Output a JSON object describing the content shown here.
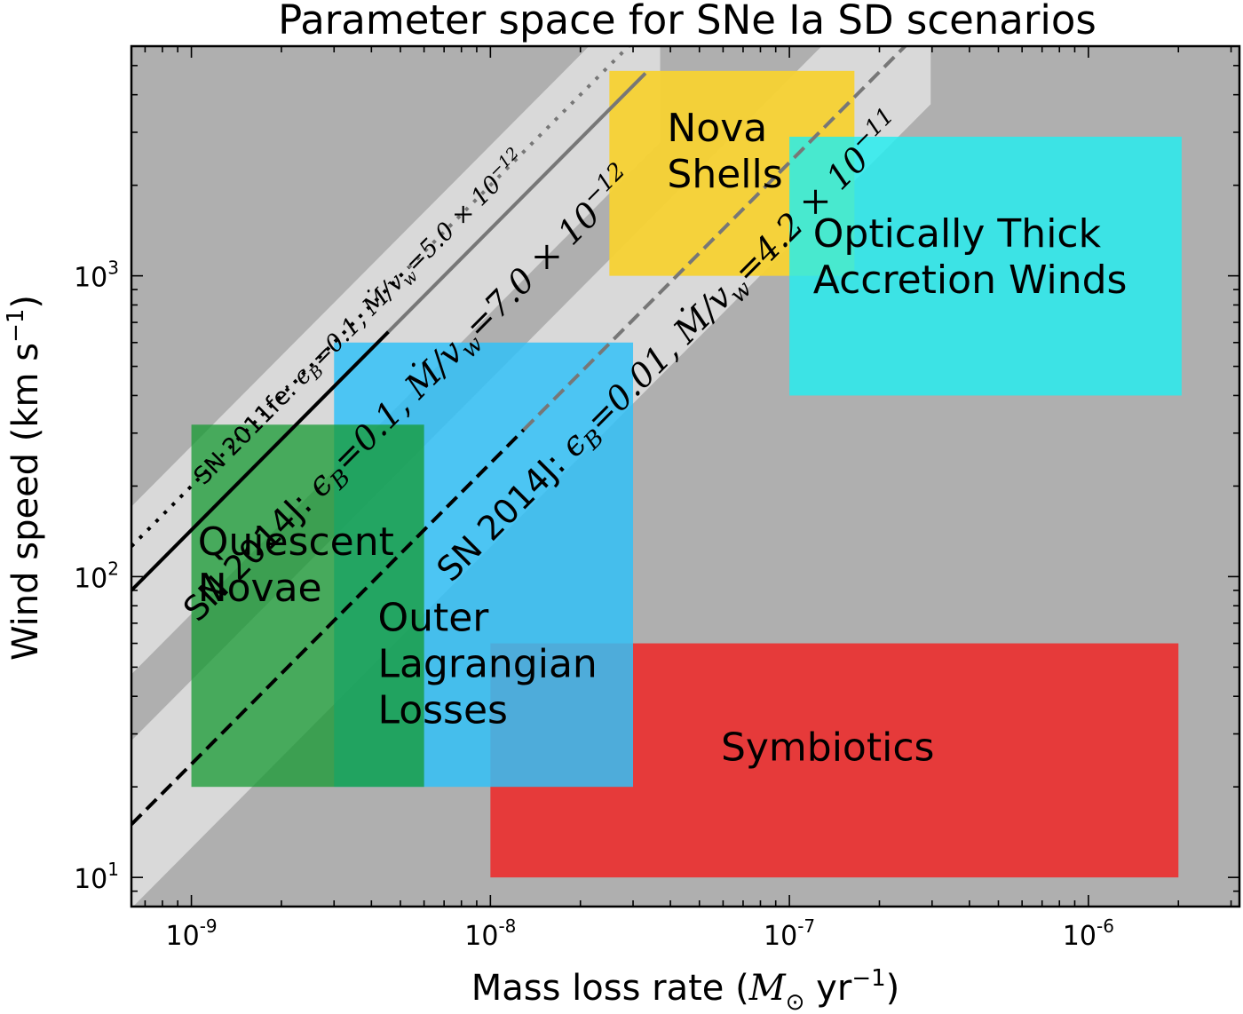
{
  "chart_data": {
    "type": "area",
    "title": "Parameter space for SNe Ia SD scenarios",
    "xlabel": {
      "main": "Mass loss rate (",
      "symbol": "M",
      "subscript": "⊙",
      "units": " yr",
      "exponent": "−1",
      "close": ")"
    },
    "ylabel": {
      "main": "Wind speed (km s",
      "exponent": "−1",
      "close": ")"
    },
    "x_scale": "log",
    "y_scale": "log",
    "xlim": [
      6.3e-10,
      3.2e-06
    ],
    "ylim": [
      8.0,
      5800
    ],
    "grid": false,
    "background_color": "#afafaf",
    "x_ticks": [
      {
        "value": 1e-09,
        "base": "10",
        "exp": "-9"
      },
      {
        "value": 1e-08,
        "base": "10",
        "exp": "-8"
      },
      {
        "value": 1e-07,
        "base": "10",
        "exp": "-7"
      },
      {
        "value": 1e-06,
        "base": "10",
        "exp": "-6"
      }
    ],
    "y_ticks": [
      {
        "value": 10,
        "base": "10",
        "exp": "1"
      },
      {
        "value": 100,
        "base": "10",
        "exp": "2"
      },
      {
        "value": 1000,
        "base": "10",
        "exp": "3"
      }
    ],
    "regions": [
      {
        "label": [
          "Nova",
          "Shells"
        ],
        "x": [
          2.5e-08,
          1.65e-07
        ],
        "y": [
          1000,
          4800
        ],
        "color": "#f7d233",
        "opacity": 0.95,
        "label_at": [
          3.9e-08,
          2800
        ]
      },
      {
        "label": [
          "Optically Thick",
          "Accretion Winds"
        ],
        "x": [
          1e-07,
          2.05e-06
        ],
        "y": [
          400,
          2900
        ],
        "color": "#22eef0",
        "opacity": 0.82,
        "label_at": [
          1.2e-07,
          1250
        ]
      },
      {
        "label": [
          "Symbiotics"
        ],
        "x": [
          1e-08,
          2e-06
        ],
        "y": [
          10,
          60
        ],
        "color": "#ee2a2a",
        "opacity": 0.88,
        "label_at": [
          5.9e-08,
          24.5
        ]
      },
      {
        "label": [
          "Outer",
          "Lagrangian",
          "Losses"
        ],
        "x": [
          3e-09,
          3e-08
        ],
        "y": [
          20,
          600
        ],
        "color": "#33c1f7",
        "opacity": 0.85,
        "label_at": [
          4.2e-09,
          66
        ]
      },
      {
        "label": [
          "Quiescent",
          "Novae"
        ],
        "x": [
          1e-09,
          6e-09
        ],
        "y": [
          20,
          320
        ],
        "color": "#169a31",
        "opacity": 0.75,
        "label_at": [
          1.05e-09,
          118
        ]
      }
    ],
    "series": [
      {
        "label_prefix": "SN 2011fe: ",
        "epsilon": "=0.1, ",
        "mdot": "=5.0 × 10",
        "exp": "−12",
        "ratio": 5e-12,
        "style": "dotted",
        "x_range": [
          6.3e-10,
          4.5e-08
        ],
        "band": false,
        "label_at": [
          1.1e-09,
          200
        ],
        "font_size": 27
      },
      {
        "label_prefix": "SN 2014J: ",
        "epsilon": "=0.1, ",
        "mdot": "=7.0 × 10",
        "exp": "−12",
        "ratio": 7e-12,
        "style": "solid",
        "x_range": [
          6.3e-10,
          3.3e-08
        ],
        "band": true,
        "label_at": [
          1.05e-09,
          70
        ],
        "font_size": 38
      },
      {
        "label_prefix": "SN 2014J: ",
        "epsilon": "=0.01, ",
        "mdot": "=4.2 × 10",
        "exp": "−11",
        "ratio": 4.2e-11,
        "style": "dashed",
        "x_range": [
          6.3e-10,
          2.65e-07
        ],
        "band": true,
        "label_at": [
          7.4e-09,
          95
        ],
        "font_size": 38
      }
    ]
  }
}
